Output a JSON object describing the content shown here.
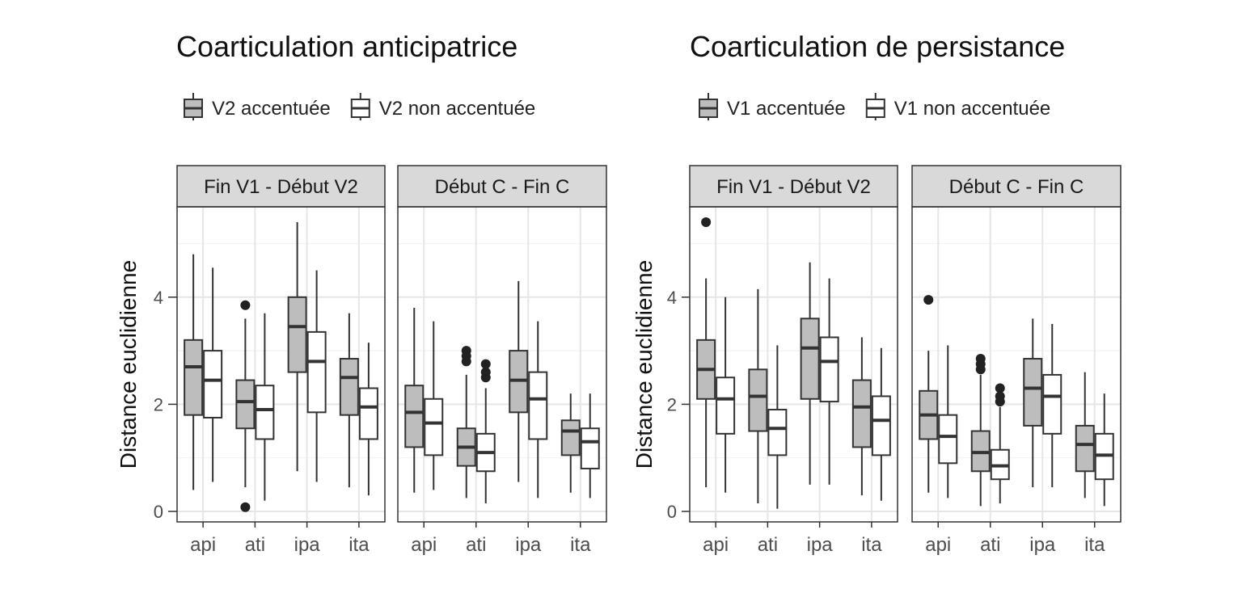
{
  "chart_data": [
    {
      "type": "box",
      "title": "Coarticulation anticipatrice",
      "ylabel": "Distance euclidienne",
      "xlabel": "",
      "ylim": [
        0,
        5.8
      ],
      "yticks": [
        0,
        2,
        4
      ],
      "grid": true,
      "legend_placement": "top",
      "categories": [
        "api",
        "ati",
        "ipa",
        "ita"
      ],
      "series": [
        {
          "name": "V2 accentuée",
          "color": "#bdbdbd"
        },
        {
          "name": "V2 non accentuée",
          "color": "#ffffff"
        }
      ],
      "panels": [
        {
          "label": "Fin V1 - Début V2",
          "boxes": [
            [
              {
                "min": 0.4,
                "q1": 1.8,
                "median": 2.7,
                "q3": 3.2,
                "max": 4.8,
                "outliers": []
              },
              {
                "min": 0.55,
                "q1": 1.75,
                "median": 2.45,
                "q3": 3.0,
                "max": 4.55,
                "outliers": []
              }
            ],
            [
              {
                "min": 0.45,
                "q1": 1.55,
                "median": 2.05,
                "q3": 2.45,
                "max": 3.6,
                "outliers": [
                  3.85,
                  0.08
                ]
              },
              {
                "min": 0.2,
                "q1": 1.35,
                "median": 1.9,
                "q3": 2.35,
                "max": 3.7,
                "outliers": []
              }
            ],
            [
              {
                "min": 0.75,
                "q1": 2.6,
                "median": 3.45,
                "q3": 4.0,
                "max": 5.4,
                "outliers": []
              },
              {
                "min": 0.55,
                "q1": 1.85,
                "median": 2.8,
                "q3": 3.35,
                "max": 4.5,
                "outliers": []
              }
            ],
            [
              {
                "min": 0.45,
                "q1": 1.8,
                "median": 2.5,
                "q3": 2.85,
                "max": 3.7,
                "outliers": []
              },
              {
                "min": 0.3,
                "q1": 1.35,
                "median": 1.95,
                "q3": 2.3,
                "max": 3.15,
                "outliers": []
              }
            ]
          ]
        },
        {
          "label": "Début C - Fin C",
          "boxes": [
            [
              {
                "min": 0.35,
                "q1": 1.2,
                "median": 1.85,
                "q3": 2.35,
                "max": 3.8,
                "outliers": []
              },
              {
                "min": 0.4,
                "q1": 1.05,
                "median": 1.65,
                "q3": 2.1,
                "max": 3.55,
                "outliers": []
              }
            ],
            [
              {
                "min": 0.25,
                "q1": 0.85,
                "median": 1.2,
                "q3": 1.55,
                "max": 2.55,
                "outliers": [
                  2.8,
                  2.9,
                  3.0
                ]
              },
              {
                "min": 0.15,
                "q1": 0.75,
                "median": 1.1,
                "q3": 1.45,
                "max": 2.3,
                "outliers": [
                  2.5,
                  2.6,
                  2.75
                ]
              }
            ],
            [
              {
                "min": 0.55,
                "q1": 1.85,
                "median": 2.45,
                "q3": 3.0,
                "max": 4.3,
                "outliers": []
              },
              {
                "min": 0.25,
                "q1": 1.35,
                "median": 2.1,
                "q3": 2.6,
                "max": 3.55,
                "outliers": []
              }
            ],
            [
              {
                "min": 0.35,
                "q1": 1.05,
                "median": 1.5,
                "q3": 1.7,
                "max": 2.2,
                "outliers": []
              },
              {
                "min": 0.25,
                "q1": 0.8,
                "median": 1.3,
                "q3": 1.55,
                "max": 2.2,
                "outliers": []
              }
            ]
          ]
        }
      ]
    },
    {
      "type": "box",
      "title": "Coarticulation de persistance",
      "ylabel": "Distance euclidienne",
      "xlabel": "",
      "ylim": [
        0,
        5.8
      ],
      "yticks": [
        0,
        2,
        4
      ],
      "grid": true,
      "legend_placement": "top",
      "categories": [
        "api",
        "ati",
        "ipa",
        "ita"
      ],
      "series": [
        {
          "name": "V1 accentuée",
          "color": "#bdbdbd"
        },
        {
          "name": "V1 non accentuée",
          "color": "#ffffff"
        }
      ],
      "panels": [
        {
          "label": "Fin V1 - Début V2",
          "boxes": [
            [
              {
                "min": 0.45,
                "q1": 2.1,
                "median": 2.65,
                "q3": 3.2,
                "max": 4.35,
                "outliers": [
                  5.4
                ]
              },
              {
                "min": 0.35,
                "q1": 1.45,
                "median": 2.1,
                "q3": 2.5,
                "max": 4.0,
                "outliers": []
              }
            ],
            [
              {
                "min": 0.15,
                "q1": 1.5,
                "median": 2.15,
                "q3": 2.65,
                "max": 4.15,
                "outliers": []
              },
              {
                "min": 0.05,
                "q1": 1.05,
                "median": 1.55,
                "q3": 1.9,
                "max": 3.1,
                "outliers": []
              }
            ],
            [
              {
                "min": 0.5,
                "q1": 2.1,
                "median": 3.05,
                "q3": 3.6,
                "max": 4.65,
                "outliers": []
              },
              {
                "min": 0.5,
                "q1": 2.05,
                "median": 2.8,
                "q3": 3.25,
                "max": 4.35,
                "outliers": []
              }
            ],
            [
              {
                "min": 0.3,
                "q1": 1.2,
                "median": 1.95,
                "q3": 2.45,
                "max": 3.25,
                "outliers": []
              },
              {
                "min": 0.2,
                "q1": 1.05,
                "median": 1.7,
                "q3": 2.15,
                "max": 3.05,
                "outliers": []
              }
            ]
          ]
        },
        {
          "label": "Début C - Fin C",
          "boxes": [
            [
              {
                "min": 0.35,
                "q1": 1.35,
                "median": 1.8,
                "q3": 2.25,
                "max": 3.0,
                "outliers": [
                  3.95
                ]
              },
              {
                "min": 0.25,
                "q1": 0.9,
                "median": 1.4,
                "q3": 1.8,
                "max": 3.1,
                "outliers": []
              }
            ],
            [
              {
                "min": 0.1,
                "q1": 0.75,
                "median": 1.1,
                "q3": 1.5,
                "max": 2.55,
                "outliers": [
                  2.65,
                  2.75,
                  2.85
                ]
              },
              {
                "min": 0.15,
                "q1": 0.6,
                "median": 0.85,
                "q3": 1.15,
                "max": 1.95,
                "outliers": [
                  2.05,
                  2.15,
                  2.3
                ]
              }
            ],
            [
              {
                "min": 0.45,
                "q1": 1.6,
                "median": 2.3,
                "q3": 2.85,
                "max": 3.6,
                "outliers": []
              },
              {
                "min": 0.45,
                "q1": 1.45,
                "median": 2.15,
                "q3": 2.55,
                "max": 3.5,
                "outliers": []
              }
            ],
            [
              {
                "min": 0.25,
                "q1": 0.75,
                "median": 1.25,
                "q3": 1.6,
                "max": 2.6,
                "outliers": []
              },
              {
                "min": 0.1,
                "q1": 0.6,
                "median": 1.05,
                "q3": 1.45,
                "max": 2.2,
                "outliers": []
              }
            ]
          ]
        }
      ]
    }
  ]
}
